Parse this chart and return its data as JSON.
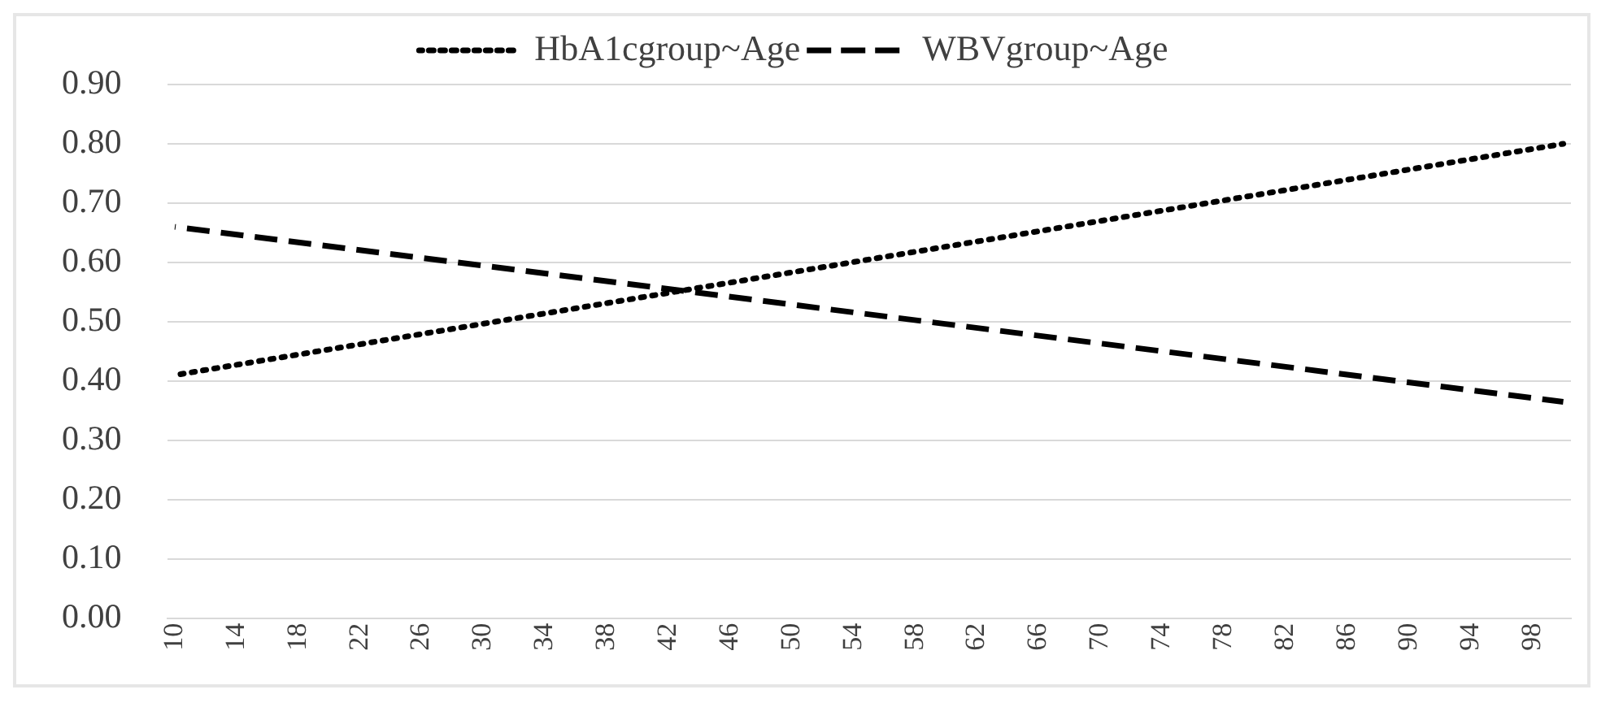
{
  "chart_data": {
    "type": "line",
    "x": [
      10,
      100
    ],
    "series": [
      {
        "name": "HbA1cgroup~Age",
        "color": "#000000",
        "values": [
          0.41,
          0.8
        ],
        "line_style": "dotted"
      },
      {
        "name": "WBVgroup~Age",
        "color": "#000000",
        "values": [
          0.66,
          0.365
        ],
        "line_style": "dashed"
      }
    ],
    "xlim": [
      9.5,
      100.5
    ],
    "xticks": [
      10,
      14,
      18,
      22,
      26,
      30,
      34,
      38,
      42,
      46,
      50,
      54,
      58,
      62,
      66,
      70,
      74,
      78,
      82,
      86,
      90,
      94,
      98
    ],
    "ylim": [
      0,
      0.9
    ],
    "yticks": [
      {
        "value": 0,
        "label": "0.00"
      },
      {
        "value": 0.1,
        "label": "0.10"
      },
      {
        "value": 0.2,
        "label": "0.20"
      },
      {
        "value": 0.3,
        "label": "0.30"
      },
      {
        "value": 0.4,
        "label": "0.40"
      },
      {
        "value": 0.5,
        "label": "0.50"
      },
      {
        "value": 0.6,
        "label": "0.60"
      },
      {
        "value": 0.7,
        "label": "0.70"
      },
      {
        "value": 0.8,
        "label": "0.80"
      },
      {
        "value": 0.9,
        "label": "0.90"
      }
    ],
    "grid": "y",
    "legend": "top",
    "marker": "none"
  }
}
